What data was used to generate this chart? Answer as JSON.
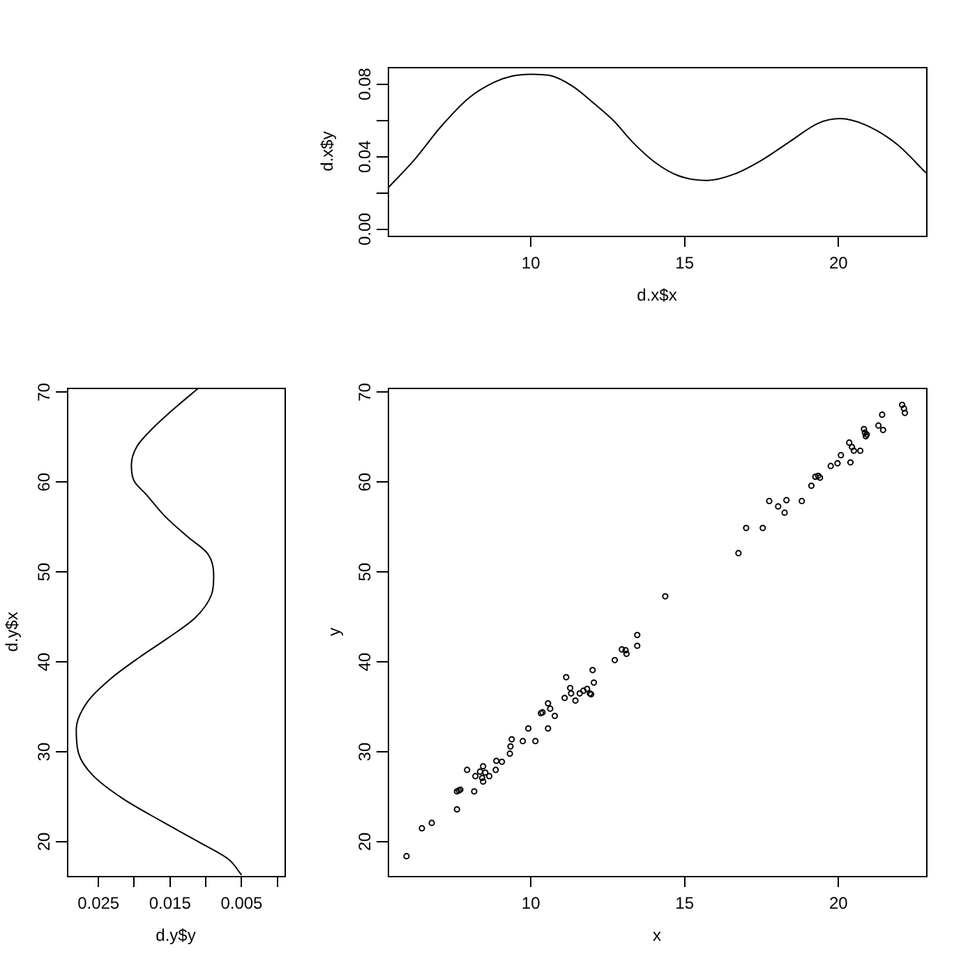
{
  "chart_data": [
    {
      "type": "line",
      "color": "#000000",
      "xlabel": "d.x$x",
      "ylabel": "d.x$y",
      "x": [
        5.35,
        6.2,
        7.1,
        8.0,
        8.8,
        9.4,
        10.0,
        10.6,
        11.35,
        12.1,
        12.7,
        13.3,
        14.05,
        14.8,
        15.7,
        16.6,
        17.5,
        18.45,
        19.35,
        20.05,
        20.85,
        21.9,
        22.85
      ],
      "values": [
        0.0226,
        0.038,
        0.057,
        0.0726,
        0.081,
        0.0845,
        0.0855,
        0.0849,
        0.079,
        0.0687,
        0.0597,
        0.0482,
        0.0367,
        0.0295,
        0.0269,
        0.0303,
        0.038,
        0.0487,
        0.0585,
        0.061,
        0.0577,
        0.0469,
        0.031
      ],
      "xlim": [
        5.35,
        22.85
      ],
      "xticks": [
        10,
        15,
        20
      ],
      "ylim": [
        -0.0036,
        0.0895
      ],
      "yticks": [
        {
          "value": 0,
          "label": "0.00"
        },
        {
          "value": 0.02,
          "label": null
        },
        0.04,
        {
          "value": 0.06,
          "label": null
        },
        0.08
      ]
    },
    {
      "type": "line",
      "color": "#000000",
      "xlabel": "d.y$y",
      "ylabel": "d.y$x",
      "x": [
        0.005,
        0.0069,
        0.0108,
        0.016,
        0.0216,
        0.0258,
        0.0278,
        0.0281,
        0.0265,
        0.0232,
        0.0193,
        0.0154,
        0.0115,
        0.0092,
        0.0089,
        0.0098,
        0.0125,
        0.0157,
        0.0183,
        0.02,
        0.0204,
        0.0196,
        0.0174,
        0.0141,
        0.0111
      ],
      "values": [
        16.3,
        18.1,
        19.9,
        22.2,
        24.8,
        27.4,
        29.9,
        32.5,
        35.6,
        38.2,
        40.5,
        42.6,
        44.9,
        47.5,
        49.5,
        52.1,
        53.9,
        56.2,
        58.6,
        60.1,
        61.9,
        64.0,
        66.0,
        68.4,
        70.4
      ],
      "xlim": [
        0.0294,
        -0.001
      ],
      "xticks": [
        0.025,
        {
          "value": 0.02,
          "label": null
        },
        0.015,
        {
          "value": 0.01,
          "label": null
        },
        0.005,
        {
          "value": 0,
          "label": null
        }
      ],
      "ylim": [
        16.2,
        70.5
      ],
      "yticks": [
        20,
        30,
        40,
        50,
        60,
        70
      ]
    },
    {
      "type": "scatter",
      "color": "#000000",
      "marker": "circle",
      "xlabel": "x",
      "ylabel": "y",
      "x": [
        5.96,
        6.46,
        6.78,
        7.6,
        7.6,
        7.66,
        7.71,
        7.93,
        8.16,
        8.2,
        8.35,
        8.45,
        8.45,
        8.42,
        8.52,
        8.65,
        8.88,
        8.86,
        9.06,
        9.32,
        9.34,
        9.38,
        9.74,
        9.92,
        10.15,
        10.33,
        10.38,
        10.56,
        10.56,
        10.63,
        10.78,
        11.1,
        11.15,
        11.28,
        11.31,
        11.45,
        11.59,
        11.71,
        11.83,
        11.92,
        11.96,
        12.01,
        12.05,
        12.73,
        12.96,
        13.08,
        13.11,
        13.46,
        13.46,
        14.37,
        16.75,
        17.0,
        17.54,
        17.75,
        18.04,
        18.25,
        18.31,
        18.81,
        19.12,
        19.25,
        19.34,
        19.4,
        19.75,
        19.97,
        20.08,
        20.39,
        20.35,
        20.44,
        20.5,
        20.71,
        20.83,
        20.86,
        20.89,
        20.92,
        21.3,
        21.42,
        21.45,
        22.07,
        22.13,
        22.16
      ],
      "values": [
        18.4,
        21.5,
        22.1,
        23.6,
        25.6,
        25.7,
        25.8,
        28.0,
        25.6,
        27.3,
        27.8,
        28.4,
        26.7,
        27.1,
        27.7,
        27.3,
        29.0,
        28.0,
        28.9,
        29.8,
        30.6,
        31.4,
        31.2,
        32.6,
        31.2,
        34.3,
        34.4,
        35.4,
        32.6,
        34.8,
        34.0,
        36.0,
        38.3,
        37.1,
        36.5,
        35.7,
        36.5,
        36.8,
        37.0,
        36.5,
        36.4,
        39.1,
        37.7,
        40.2,
        41.4,
        41.3,
        40.9,
        43.0,
        41.8,
        47.3,
        52.1,
        54.9,
        54.9,
        57.9,
        57.3,
        56.6,
        58.0,
        57.9,
        59.6,
        60.6,
        60.7,
        60.5,
        61.8,
        62.1,
        63.0,
        62.2,
        64.4,
        63.9,
        63.5,
        63.5,
        65.9,
        65.5,
        65.1,
        65.3,
        66.3,
        67.5,
        65.8,
        68.6,
        68.2,
        67.7
      ],
      "xlim": [
        5.35,
        22.85
      ],
      "xticks": [
        10,
        15,
        20
      ],
      "ylim": [
        16.2,
        70.5
      ],
      "yticks": [
        20,
        30,
        40,
        50,
        60,
        70
      ]
    }
  ]
}
